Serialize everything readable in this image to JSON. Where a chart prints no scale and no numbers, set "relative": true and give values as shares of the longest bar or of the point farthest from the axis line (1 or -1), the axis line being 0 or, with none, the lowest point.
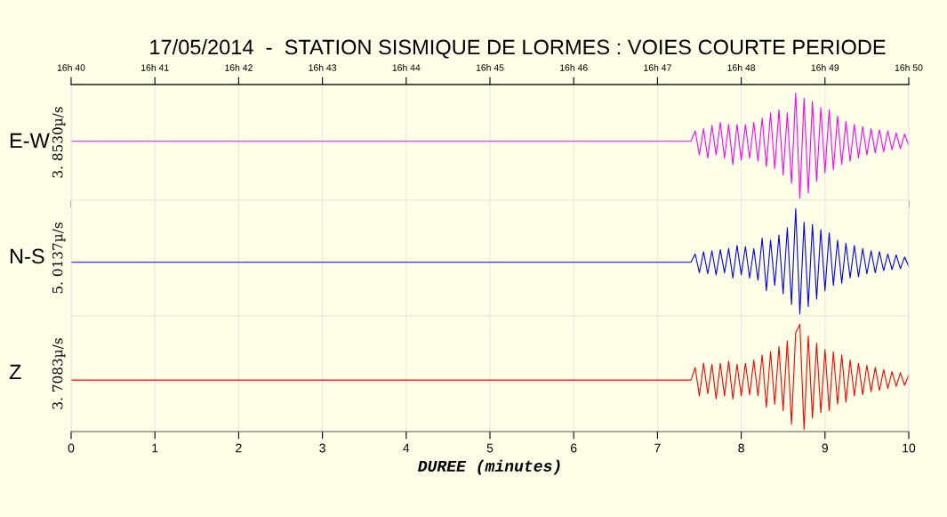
{
  "chart_data": [
    {
      "type": "line",
      "title": "17/05/2014  -  STATION SISMIQUE DE LORMES : VOIES COURTE PERIODE",
      "annotations": [
        "E-W"
      ],
      "ylabel": "3. 8530µ/s",
      "relative": true,
      "grid": "x",
      "tick_labels": false,
      "x": [
        0,
        7.4,
        7.45,
        7.5,
        7.55,
        7.6,
        7.65,
        7.7,
        7.75,
        7.8,
        7.85,
        7.9,
        7.95,
        8.0,
        8.05,
        8.1,
        8.15,
        8.2,
        8.25,
        8.3,
        8.35,
        8.4,
        8.45,
        8.5,
        8.55,
        8.6,
        8.65,
        8.7,
        8.75,
        8.8,
        8.85,
        8.9,
        8.95,
        9.0,
        9.05,
        9.1,
        9.15,
        9.2,
        9.25,
        9.3,
        9.35,
        9.4,
        9.45,
        9.5,
        9.55,
        9.6,
        9.65,
        9.7,
        9.75,
        9.8,
        9.85,
        9.9,
        9.95,
        10.0
      ],
      "xlim": [
        0,
        10
      ],
      "x2lim": [
        "2014-05-17T16:40",
        "2014-05-17T16:50"
      ],
      "x2ticks": [
        {
          "value": "2014-05-17T16:40",
          "label": "16h 40"
        },
        {
          "value": "2014-05-17T16:41",
          "label": "16h 41"
        },
        {
          "value": "2014-05-17T16:42",
          "label": "16h 42"
        },
        {
          "value": "2014-05-17T16:43",
          "label": "16h 43"
        },
        {
          "value": "2014-05-17T16:44",
          "label": "16h 44"
        },
        {
          "value": "2014-05-17T16:45",
          "label": "16h 45"
        },
        {
          "value": "2014-05-17T16:46",
          "label": "16h 46"
        },
        {
          "value": "2014-05-17T16:47",
          "label": "16h 47"
        },
        {
          "value": "2014-05-17T16:48",
          "label": "16h 48"
        },
        {
          "value": "2014-05-17T16:49",
          "label": "16h 49"
        },
        {
          "value": "2014-05-17T16:50",
          "label": "16h 50"
        }
      ],
      "series": [
        {
          "color": "#ff00ff",
          "values": [
            0.54,
            0.54,
            0.64,
            0.41,
            0.66,
            0.38,
            0.69,
            0.41,
            0.72,
            0.38,
            0.7,
            0.32,
            0.7,
            0.36,
            0.7,
            0.38,
            0.72,
            0.35,
            0.76,
            0.3,
            0.81,
            0.28,
            0.84,
            0.22,
            0.81,
            0.14,
            1.0,
            0,
            0.95,
            0.05,
            0.92,
            0.16,
            0.86,
            0.24,
            0.84,
            0.27,
            0.78,
            0.32,
            0.73,
            0.35,
            0.7,
            0.38,
            0.68,
            0.41,
            0.66,
            0.43,
            0.65,
            0.44,
            0.64,
            0.46,
            0.62,
            0.47,
            0.61,
            0.5
          ]
        }
      ]
    },
    {
      "type": "line",
      "annotations": [
        "N-S"
      ],
      "ylabel": "5. 0137µ/s",
      "relative": true,
      "grid": "x",
      "tick_labels": false,
      "x": [
        0,
        7.4,
        7.45,
        7.5,
        7.55,
        7.6,
        7.65,
        7.7,
        7.75,
        7.8,
        7.85,
        7.9,
        7.95,
        8.0,
        8.05,
        8.1,
        8.15,
        8.2,
        8.25,
        8.3,
        8.35,
        8.4,
        8.45,
        8.5,
        8.55,
        8.6,
        8.65,
        8.7,
        8.75,
        8.8,
        8.85,
        8.9,
        8.95,
        9.0,
        9.05,
        9.1,
        9.15,
        9.2,
        9.25,
        9.3,
        9.35,
        9.4,
        9.45,
        9.5,
        9.55,
        9.6,
        9.65,
        9.7,
        9.75,
        9.8,
        9.85,
        9.9,
        9.95,
        10.0
      ],
      "xlim": [
        0,
        10
      ],
      "series": [
        {
          "color": "#0000ff",
          "values": [
            0.49,
            0.49,
            0.57,
            0.39,
            0.59,
            0.38,
            0.6,
            0.37,
            0.61,
            0.39,
            0.62,
            0.34,
            0.65,
            0.37,
            0.64,
            0.34,
            0.62,
            0.32,
            0.72,
            0.22,
            0.7,
            0.27,
            0.75,
            0.19,
            0.82,
            0.09,
            1.0,
            0,
            0.87,
            0.07,
            0.85,
            0.14,
            0.8,
            0.22,
            0.77,
            0.27,
            0.7,
            0.29,
            0.67,
            0.34,
            0.65,
            0.35,
            0.62,
            0.38,
            0.6,
            0.39,
            0.59,
            0.41,
            0.57,
            0.42,
            0.56,
            0.43,
            0.54,
            0.45
          ]
        }
      ]
    },
    {
      "type": "line",
      "annotations": [
        "Z"
      ],
      "ylabel": "3. 7083µ/s",
      "relative": true,
      "grid": "x",
      "tick_labels": "x",
      "xlabel": "DUREE (minutes)",
      "x": [
        0,
        7.4,
        7.45,
        7.5,
        7.55,
        7.6,
        7.65,
        7.7,
        7.75,
        7.8,
        7.85,
        7.9,
        7.95,
        8.0,
        8.05,
        8.1,
        8.15,
        8.2,
        8.25,
        8.3,
        8.35,
        8.4,
        8.45,
        8.5,
        8.55,
        8.6,
        8.65,
        8.7,
        8.75,
        8.8,
        8.85,
        8.9,
        8.95,
        9.0,
        9.05,
        9.1,
        9.15,
        9.2,
        9.25,
        9.3,
        9.35,
        9.4,
        9.45,
        9.5,
        9.55,
        9.6,
        9.65,
        9.7,
        9.75,
        9.8,
        9.85,
        9.9,
        9.95,
        10.0
      ],
      "xlim": [
        0,
        10
      ],
      "xticks": [
        0,
        1,
        2,
        3,
        4,
        5,
        6,
        7,
        8,
        9,
        10
      ],
      "series": [
        {
          "color": "#ff0000",
          "values": [
            0.47,
            0.47,
            0.59,
            0.32,
            0.63,
            0.34,
            0.62,
            0.29,
            0.63,
            0.32,
            0.65,
            0.29,
            0.62,
            0.32,
            0.63,
            0.33,
            0.66,
            0.32,
            0.71,
            0.21,
            0.74,
            0.24,
            0.79,
            0.18,
            0.84,
            0.05,
            0.92,
            1.0,
            0,
            0.89,
            0.11,
            0.82,
            0.16,
            0.76,
            0.18,
            0.74,
            0.24,
            0.71,
            0.26,
            0.66,
            0.32,
            0.63,
            0.33,
            0.61,
            0.36,
            0.59,
            0.37,
            0.57,
            0.39,
            0.55,
            0.41,
            0.54,
            0.42,
            0.52
          ]
        }
      ]
    }
  ]
}
